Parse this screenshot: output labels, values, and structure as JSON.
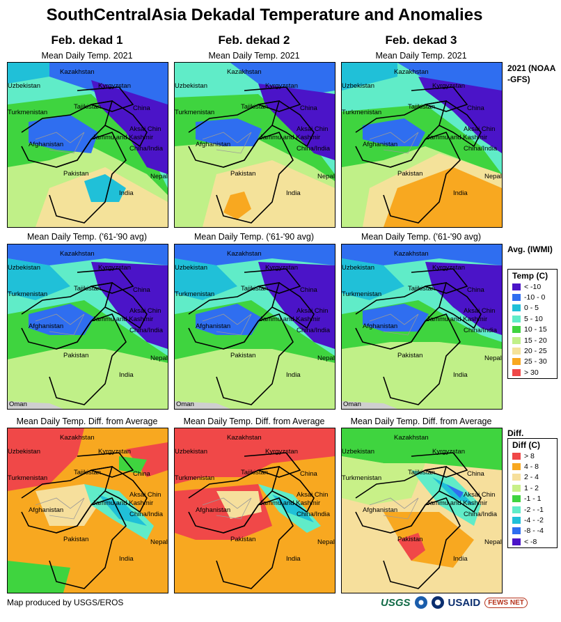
{
  "title": "SouthCentralAsia Dekadal Temperature and Anomalies",
  "columns": [
    {
      "label": "Feb. dekad 1"
    },
    {
      "label": "Feb. dekad 2"
    },
    {
      "label": "Feb. dekad 3"
    }
  ],
  "rows": [
    {
      "subtitle": "Mean Daily Temp. 2021",
      "side_label": "2021 (NOAA -GFS)"
    },
    {
      "subtitle": "Mean Daily Temp. ('61-'90 avg)",
      "side_label": "Avg. (IWMI)"
    },
    {
      "subtitle": "Mean Daily Temp. Diff. from Average",
      "side_label": "Diff."
    }
  ],
  "map_labels": {
    "kazakhstan": "Kazakhstan",
    "uzbekistan": "Uzbekistan",
    "kyrgyzstan": "Kyrgyzstan",
    "tajikistan": "Tajikistan",
    "turkmenistan": "Turkmenistan",
    "china": "China",
    "aksai_chin": "Aksai Chin",
    "jammu_kashmir": "Jammu and Kashmir",
    "china_india": "China/India",
    "afghanistan": "Afghanistan",
    "pakistan": "Pakistan",
    "nepal": "Nepal",
    "india": "India",
    "oman": "Oman"
  },
  "temp_legend": {
    "title": "Temp (C)",
    "items": [
      {
        "label": "< -10",
        "color": "#4b14c8"
      },
      {
        "label": "-10 - 0",
        "color": "#2f6ef0"
      },
      {
        "label": "0 - 5",
        "color": "#20c0d8"
      },
      {
        "label": "5 - 10",
        "color": "#60ecc8"
      },
      {
        "label": "10 - 15",
        "color": "#3fd43f"
      },
      {
        "label": "15 - 20",
        "color": "#c0f088"
      },
      {
        "label": "20 - 25",
        "color": "#f4e29a"
      },
      {
        "label": "25 - 30",
        "color": "#f8a820"
      },
      {
        "label": "> 30",
        "color": "#f04848"
      }
    ]
  },
  "diff_legend": {
    "title": "Diff (C)",
    "items": [
      {
        "label": "> 8",
        "color": "#f04848"
      },
      {
        "label": "4 - 8",
        "color": "#f8a820"
      },
      {
        "label": "2 - 4",
        "color": "#f6df9c"
      },
      {
        "label": "1 - 2",
        "color": "#c8f088"
      },
      {
        "label": "-1 - 1",
        "color": "#3fd43f"
      },
      {
        "label": "-2 - -1",
        "color": "#60ecc8"
      },
      {
        "label": "-4 - -2",
        "color": "#20c0d8"
      },
      {
        "label": "-8 - -4",
        "color": "#2f6ef0"
      },
      {
        "label": "< -8",
        "color": "#4b14c8"
      }
    ]
  },
  "footer": "Map produced by USGS/EROS",
  "logos": {
    "usgs": "USGS",
    "usaid": "USAID",
    "fews": "FEWS NET"
  }
}
